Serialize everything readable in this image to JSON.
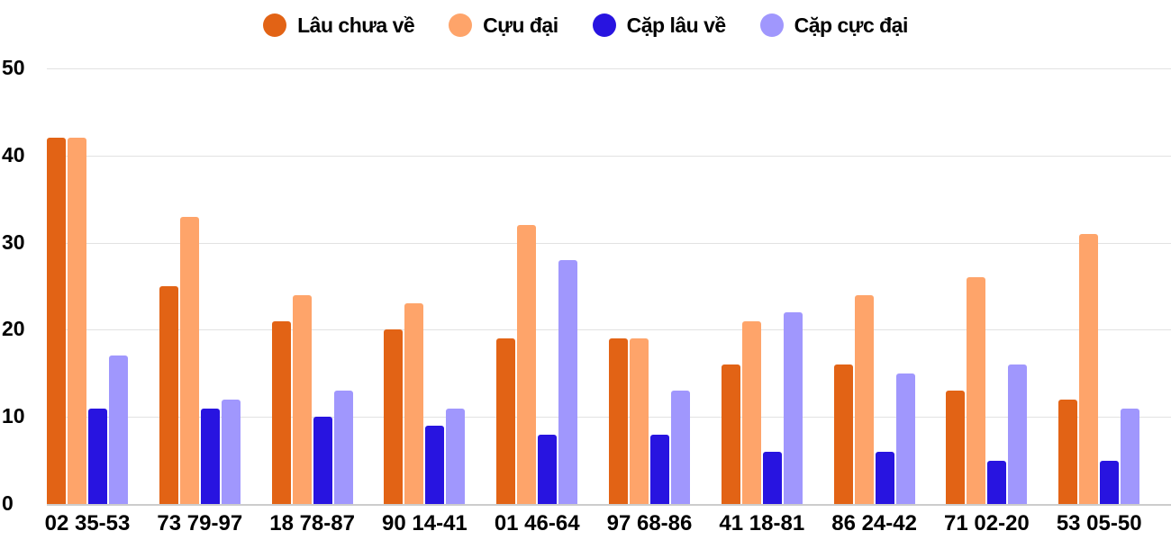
{
  "chart_data": {
    "type": "bar",
    "title": "",
    "xlabel": "",
    "ylabel": "",
    "ylim": [
      0,
      50
    ],
    "yticks": [
      0,
      10,
      20,
      30,
      40,
      50
    ],
    "grid": true,
    "legend_position": "top",
    "categories": [
      "02 35-53",
      "73 79-97",
      "18 78-87",
      "90 14-41",
      "01 46-64",
      "97 68-86",
      "41 18-81",
      "86 24-42",
      "71 02-20",
      "53 05-50"
    ],
    "series": [
      {
        "name": "Lâu chưa về",
        "color": "#e26315",
        "values": [
          42,
          25,
          21,
          20,
          19,
          19,
          16,
          16,
          13,
          12
        ]
      },
      {
        "name": "Cựu đại",
        "color": "#fea46a",
        "values": [
          42,
          33,
          24,
          23,
          32,
          19,
          21,
          24,
          26,
          31
        ]
      },
      {
        "name": "Cặp lâu về",
        "color": "#2814e0",
        "values": [
          11,
          11,
          10,
          9,
          8,
          8,
          6,
          6,
          5,
          5
        ]
      },
      {
        "name": "Cặp cực đại",
        "color": "#a097fd",
        "values": [
          17,
          12,
          13,
          11,
          28,
          13,
          22,
          15,
          16,
          11
        ]
      }
    ]
  },
  "legend": [
    {
      "label": "Lâu chưa về",
      "color": "#e26315"
    },
    {
      "label": "Cựu đại",
      "color": "#fea46a"
    },
    {
      "label": "Cặp lâu về",
      "color": "#2814e0"
    },
    {
      "label": "Cặp cực đại",
      "color": "#a097fd"
    }
  ],
  "axis": {
    "y_labels": [
      "0",
      "10",
      "20",
      "30",
      "40",
      "50"
    ]
  }
}
